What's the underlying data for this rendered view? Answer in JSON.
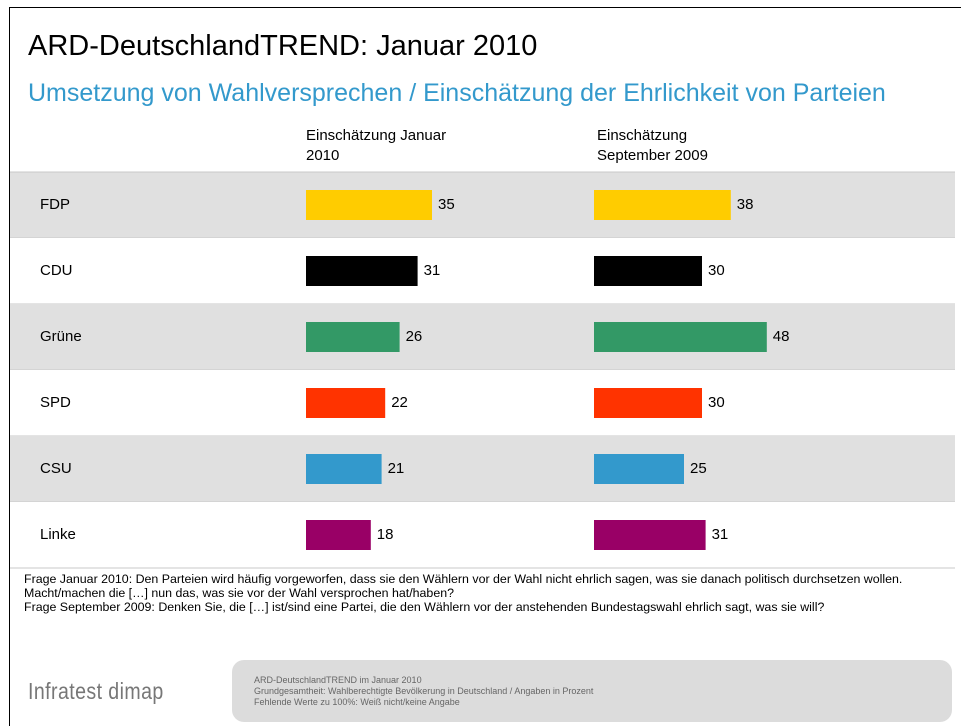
{
  "chart_data": {
    "type": "bar",
    "title": "ARD-DeutschlandTREND: Januar 2010",
    "subtitle": "Umsetzung von Wahlversprechen / Einschätzung der Ehrlichkeit von Parteien",
    "categories": [
      "FDP",
      "CDU",
      "Grüne",
      "SPD",
      "CSU",
      "Linke"
    ],
    "colors": [
      "#ffcc00",
      "#000000",
      "#339966",
      "#ff3300",
      "#3399cc",
      "#990066"
    ],
    "series": [
      {
        "name": "Einschätzung Januar 2010",
        "values": [
          35,
          31,
          26,
          22,
          21,
          18
        ]
      },
      {
        "name": "Einschätzung September 2009",
        "values": [
          38,
          30,
          48,
          30,
          25,
          31
        ]
      }
    ],
    "notes": [
      "Frage Januar 2010: Den Parteien wird häufig vorgeworfen, dass sie den Wählern vor der Wahl nicht ehrlich sagen, was sie danach politisch durchsetzen wollen. Macht/machen die […] nun das, was sie vor der Wahl versprochen hat/haben?",
      "Frage September 2009: Denken Sie, die […] ist/sind eine Partei, die den Wählern vor der anstehenden Bundestagswahl ehrlich sagt, was sie will?"
    ],
    "brand": "Infratest dimap",
    "source": [
      "ARD-DeutschlandTREND im Januar 2010",
      "Grundgesamtheit: Wahlberechtigte Bevölkerung in Deutschland / Angaben in Prozent",
      "Fehlende Werte zu 100%: Weiß nicht/keine Angabe"
    ]
  }
}
